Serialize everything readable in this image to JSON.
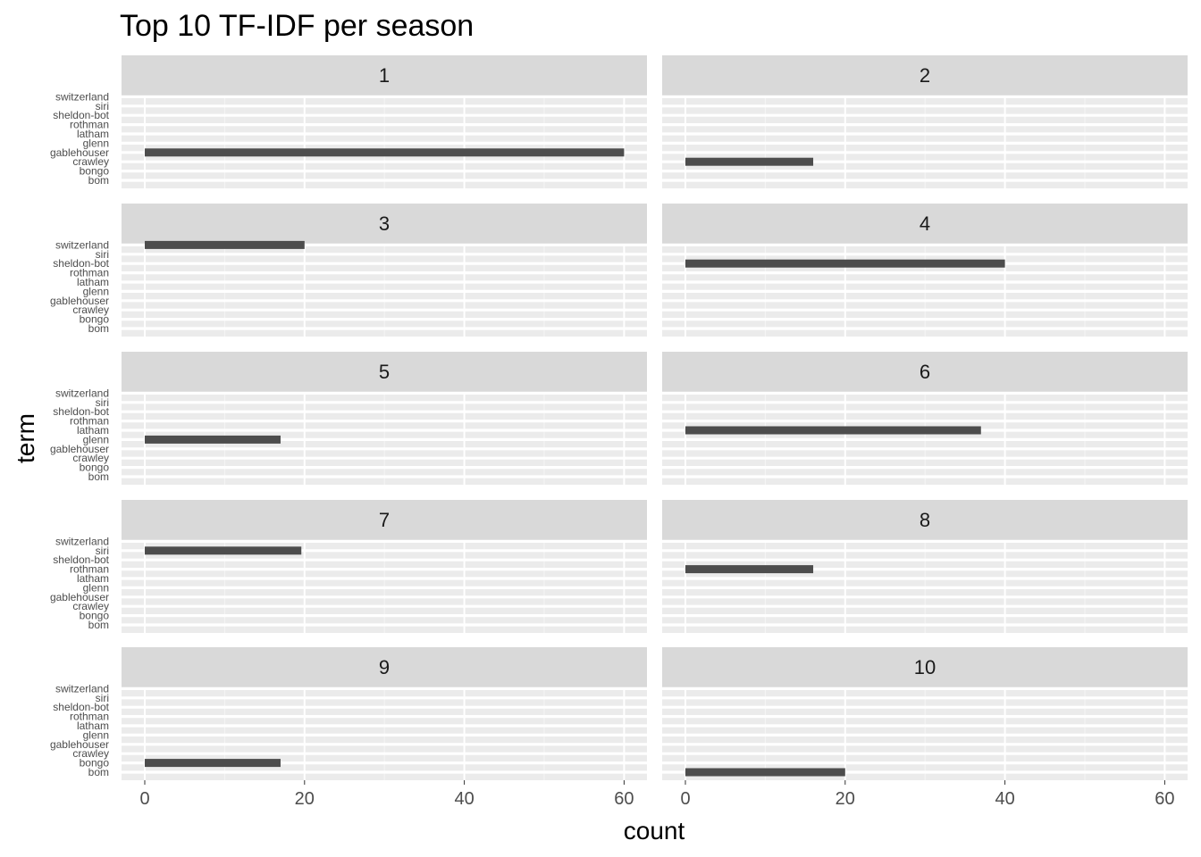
{
  "chart_data": {
    "type": "bar",
    "orientation": "horizontal",
    "title": "Top 10 TF-IDF per season",
    "xlabel": "count",
    "ylabel": "term",
    "xlim": [
      0,
      60
    ],
    "x_ticks": [
      0,
      20,
      40,
      60
    ],
    "categories": [
      "bom",
      "bongo",
      "crawley",
      "gablehouser",
      "glenn",
      "latham",
      "rothman",
      "sheldon-bot",
      "siri",
      "switzerland"
    ],
    "grid": true,
    "background": "#ebebeb",
    "strip_color": "#d9d9d9",
    "bar_color": "#4d4d4d",
    "facets": [
      {
        "label": "1",
        "term": "gablehouser",
        "value": 60
      },
      {
        "label": "2",
        "term": "crawley",
        "value": 16
      },
      {
        "label": "3",
        "term": "switzerland",
        "value": 20
      },
      {
        "label": "4",
        "term": "sheldon-bot",
        "value": 40
      },
      {
        "label": "5",
        "term": "glenn",
        "value": 17
      },
      {
        "label": "6",
        "term": "latham",
        "value": 37
      },
      {
        "label": "7",
        "term": "siri",
        "value": 19.6
      },
      {
        "label": "8",
        "term": "rothman",
        "value": 16
      },
      {
        "label": "9",
        "term": "bongo",
        "value": 17
      },
      {
        "label": "10",
        "term": "bom",
        "value": 20
      }
    ]
  }
}
